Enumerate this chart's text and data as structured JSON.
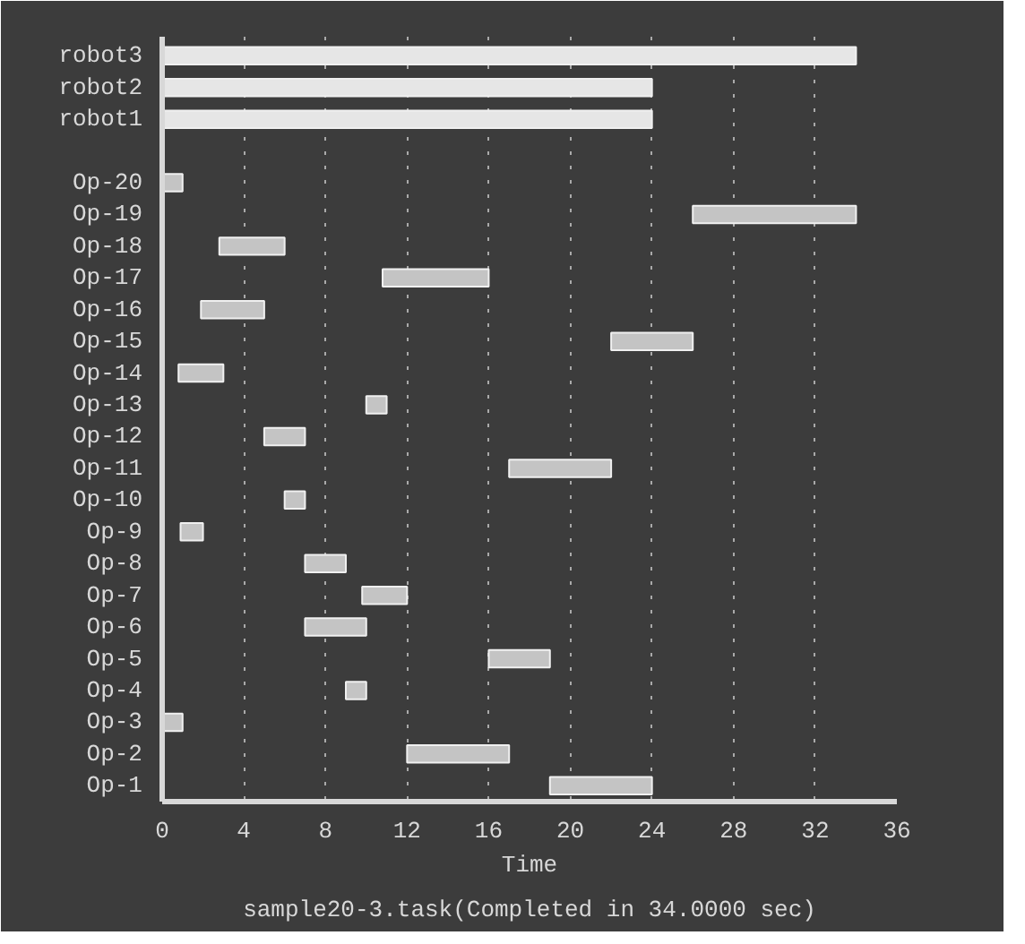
{
  "chart_data": {
    "type": "bar",
    "orientation": "horizontal",
    "categories": [
      "robot3",
      "robot2",
      "robot1",
      null,
      "Op-20",
      "Op-19",
      "Op-18",
      "Op-17",
      "Op-16",
      "Op-15",
      "Op-14",
      "Op-13",
      "Op-12",
      "Op-11",
      "Op-10",
      "Op-9",
      "Op-8",
      "Op-7",
      "Op-6",
      "Op-5",
      "Op-4",
      "Op-3",
      "Op-2",
      "Op-1"
    ],
    "base": [
      0,
      0,
      0,
      null,
      0,
      26,
      2.8,
      10.8,
      1.9,
      22,
      0.8,
      10,
      5,
      17,
      6,
      0.9,
      7,
      9.8,
      7,
      16,
      9,
      0,
      12,
      19
    ],
    "values": [
      34,
      24,
      24,
      null,
      1,
      8,
      3.2,
      5.2,
      3.1,
      4,
      2.2,
      1,
      2,
      5,
      1,
      1.1,
      2,
      2.2,
      3,
      3,
      1,
      1,
      5,
      5
    ],
    "colors": [
      "#e6e6e6",
      "#e6e6e6",
      "#e6e6e6",
      null,
      "#c4c4c4",
      "#c4c4c4",
      "#c4c4c4",
      "#c4c4c4",
      "#c4c4c4",
      "#c4c4c4",
      "#c4c4c4",
      "#c4c4c4",
      "#c4c4c4",
      "#c4c4c4",
      "#c4c4c4",
      "#c4c4c4",
      "#c4c4c4",
      "#c4c4c4",
      "#c4c4c4",
      "#c4c4c4",
      "#c4c4c4",
      "#c4c4c4",
      "#c4c4c4",
      "#c4c4c4"
    ],
    "xlim": [
      0,
      36
    ],
    "xticks": [
      0,
      4,
      8,
      12,
      16,
      20,
      24,
      28,
      32,
      36
    ],
    "xlabel": "Time",
    "grid": "x",
    "legend": false,
    "annotations": [
      "sample20-3.task(Completed in 34.0000 sec)"
    ]
  }
}
